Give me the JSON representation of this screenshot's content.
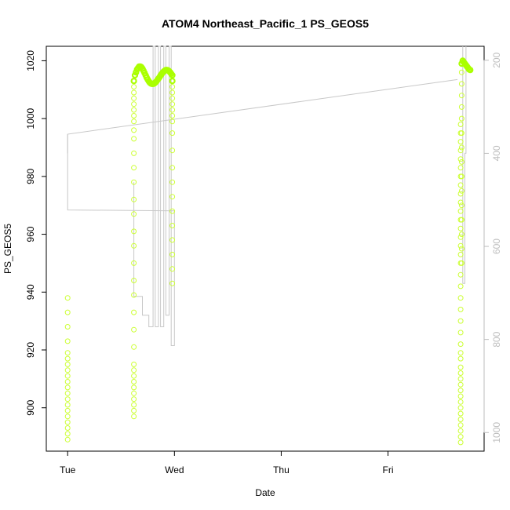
{
  "chart_data": {
    "type": "scatter",
    "title": "ATOM4 Northeast_Pacific_1 PS_GEOS5",
    "xlabel": "Date",
    "ylabel": "PS_GEOS5",
    "x_ticks": [
      {
        "label": "Tue",
        "value": 0
      },
      {
        "label": "Wed",
        "value": 1
      },
      {
        "label": "Thu",
        "value": 2
      },
      {
        "label": "Fri",
        "value": 3
      }
    ],
    "xlim": [
      -0.2,
      3.9
    ],
    "ylim": [
      885,
      1025
    ],
    "y_ticks": [
      900,
      920,
      940,
      960,
      980,
      1000,
      1020
    ],
    "y2_ticks": [
      200,
      400,
      600,
      800,
      1000
    ],
    "y2lim": [
      1040,
      170
    ],
    "colors": {
      "points": "#ccff33",
      "points_dense": "#aaff00",
      "line": "#c8c8c8",
      "axis": "#000000",
      "right_axis": "#bdbdbd"
    },
    "series": [
      {
        "marker": "circle-open",
        "points": [
          [
            0.0,
            889
          ],
          [
            0.0,
            891
          ],
          [
            0.0,
            893
          ],
          [
            0.0,
            895
          ],
          [
            0.0,
            897
          ],
          [
            0.0,
            899
          ],
          [
            0.0,
            901
          ],
          [
            0.0,
            903
          ],
          [
            0.0,
            905
          ],
          [
            0.0,
            907
          ],
          [
            0.0,
            909
          ],
          [
            0.0,
            911
          ],
          [
            0.0,
            913
          ],
          [
            0.0,
            915
          ],
          [
            0.0,
            917
          ],
          [
            0.0,
            919
          ],
          [
            0.0,
            923
          ],
          [
            0.0,
            928
          ],
          [
            0.0,
            933
          ],
          [
            0.0,
            938
          ],
          [
            0.62,
            897
          ],
          [
            0.62,
            899
          ],
          [
            0.62,
            901
          ],
          [
            0.62,
            903
          ],
          [
            0.62,
            905
          ],
          [
            0.62,
            907
          ],
          [
            0.62,
            909
          ],
          [
            0.62,
            911
          ],
          [
            0.62,
            913
          ],
          [
            0.62,
            915
          ],
          [
            0.62,
            921
          ],
          [
            0.62,
            927
          ],
          [
            0.62,
            933
          ],
          [
            0.62,
            939
          ],
          [
            0.62,
            944
          ],
          [
            0.62,
            950
          ],
          [
            0.62,
            956
          ],
          [
            0.62,
            961
          ],
          [
            0.62,
            967
          ],
          [
            0.62,
            972
          ],
          [
            0.62,
            978
          ],
          [
            0.62,
            983
          ],
          [
            0.62,
            988
          ],
          [
            0.62,
            993
          ],
          [
            0.62,
            996
          ],
          [
            0.62,
            999
          ],
          [
            0.62,
            1001
          ],
          [
            0.62,
            1003
          ],
          [
            0.62,
            1005
          ],
          [
            0.62,
            1007
          ],
          [
            0.62,
            1009
          ],
          [
            0.62,
            1011
          ],
          [
            0.62,
            1013
          ],
          [
            0.63,
            1015
          ],
          [
            0.64,
            1016
          ],
          [
            0.65,
            1017
          ],
          [
            0.66,
            1017.5
          ],
          [
            0.67,
            1018
          ],
          [
            0.68,
            1018
          ],
          [
            0.69,
            1017.8
          ],
          [
            0.7,
            1017.3
          ],
          [
            0.71,
            1016.6
          ],
          [
            0.72,
            1015.8
          ],
          [
            0.73,
            1015
          ],
          [
            0.74,
            1014.2
          ],
          [
            0.75,
            1013.5
          ],
          [
            0.76,
            1012.9
          ],
          [
            0.77,
            1012.4
          ],
          [
            0.78,
            1012.1
          ],
          [
            0.79,
            1012
          ],
          [
            0.8,
            1012
          ],
          [
            0.81,
            1012.1
          ],
          [
            0.82,
            1012.4
          ],
          [
            0.83,
            1012.8
          ],
          [
            0.84,
            1013.3
          ],
          [
            0.85,
            1013.8
          ],
          [
            0.86,
            1014.3
          ],
          [
            0.87,
            1014.9
          ],
          [
            0.88,
            1015.4
          ],
          [
            0.89,
            1015.9
          ],
          [
            0.9,
            1016.3
          ],
          [
            0.91,
            1016.6
          ],
          [
            0.92,
            1016.8
          ],
          [
            0.93,
            1016.8
          ],
          [
            0.94,
            1016.7
          ],
          [
            0.95,
            1016.4
          ],
          [
            0.96,
            1016
          ],
          [
            0.97,
            1015.5
          ],
          [
            0.98,
            1015
          ],
          [
            0.98,
            1013
          ],
          [
            0.98,
            1011
          ],
          [
            0.98,
            1009
          ],
          [
            0.98,
            1007
          ],
          [
            0.98,
            1005
          ],
          [
            0.98,
            1003
          ],
          [
            0.98,
            1001
          ],
          [
            0.98,
            999
          ],
          [
            0.98,
            995
          ],
          [
            0.98,
            989
          ],
          [
            0.98,
            983
          ],
          [
            0.98,
            978
          ],
          [
            0.98,
            973
          ],
          [
            0.98,
            968
          ],
          [
            0.98,
            963
          ],
          [
            0.98,
            958
          ],
          [
            0.98,
            953
          ],
          [
            0.98,
            948
          ],
          [
            0.98,
            943
          ],
          [
            3.68,
            888
          ],
          [
            3.68,
            890
          ],
          [
            3.68,
            892
          ],
          [
            3.68,
            894
          ],
          [
            3.68,
            896
          ],
          [
            3.68,
            898
          ],
          [
            3.68,
            900
          ],
          [
            3.68,
            902
          ],
          [
            3.68,
            904
          ],
          [
            3.68,
            906
          ],
          [
            3.68,
            908
          ],
          [
            3.68,
            910
          ],
          [
            3.68,
            912
          ],
          [
            3.68,
            914
          ],
          [
            3.68,
            917
          ],
          [
            3.68,
            919
          ],
          [
            3.68,
            922
          ],
          [
            3.68,
            926
          ],
          [
            3.68,
            930
          ],
          [
            3.68,
            934
          ],
          [
            3.68,
            938
          ],
          [
            3.68,
            942
          ],
          [
            3.68,
            946
          ],
          [
            3.68,
            950
          ],
          [
            3.68,
            953
          ],
          [
            3.68,
            956
          ],
          [
            3.68,
            959
          ],
          [
            3.68,
            962
          ],
          [
            3.68,
            965
          ],
          [
            3.68,
            968
          ],
          [
            3.68,
            971
          ],
          [
            3.68,
            974
          ],
          [
            3.68,
            977
          ],
          [
            3.68,
            980
          ],
          [
            3.68,
            983
          ],
          [
            3.68,
            986
          ],
          [
            3.68,
            989
          ],
          [
            3.68,
            992
          ],
          [
            3.68,
            995
          ],
          [
            3.68,
            998
          ],
          [
            3.69,
            950
          ],
          [
            3.69,
            955
          ],
          [
            3.69,
            960
          ],
          [
            3.69,
            965
          ],
          [
            3.69,
            970
          ],
          [
            3.69,
            975
          ],
          [
            3.69,
            980
          ],
          [
            3.69,
            985
          ],
          [
            3.69,
            990
          ],
          [
            3.69,
            995
          ],
          [
            3.69,
            1000
          ],
          [
            3.69,
            1004
          ],
          [
            3.69,
            1008
          ],
          [
            3.69,
            1012
          ],
          [
            3.69,
            1016
          ],
          [
            3.69,
            1019
          ],
          [
            3.7,
            1020
          ],
          [
            3.71,
            1019.5
          ],
          [
            3.72,
            1019
          ],
          [
            3.73,
            1018.5
          ],
          [
            3.74,
            1018
          ],
          [
            3.75,
            1017.5
          ],
          [
            3.76,
            1017
          ],
          [
            3.77,
            1016.8
          ]
        ]
      }
    ],
    "line_series": [
      {
        "points": [
          [
            0.0,
            988
          ],
          [
            0.0,
            994.6
          ],
          [
            3.65,
            1013.5
          ],
          [
            3.65,
            1013.5
          ],
          [
            0.0,
            968.4
          ],
          [
            1.0,
            968.1
          ]
        ]
      }
    ]
  }
}
